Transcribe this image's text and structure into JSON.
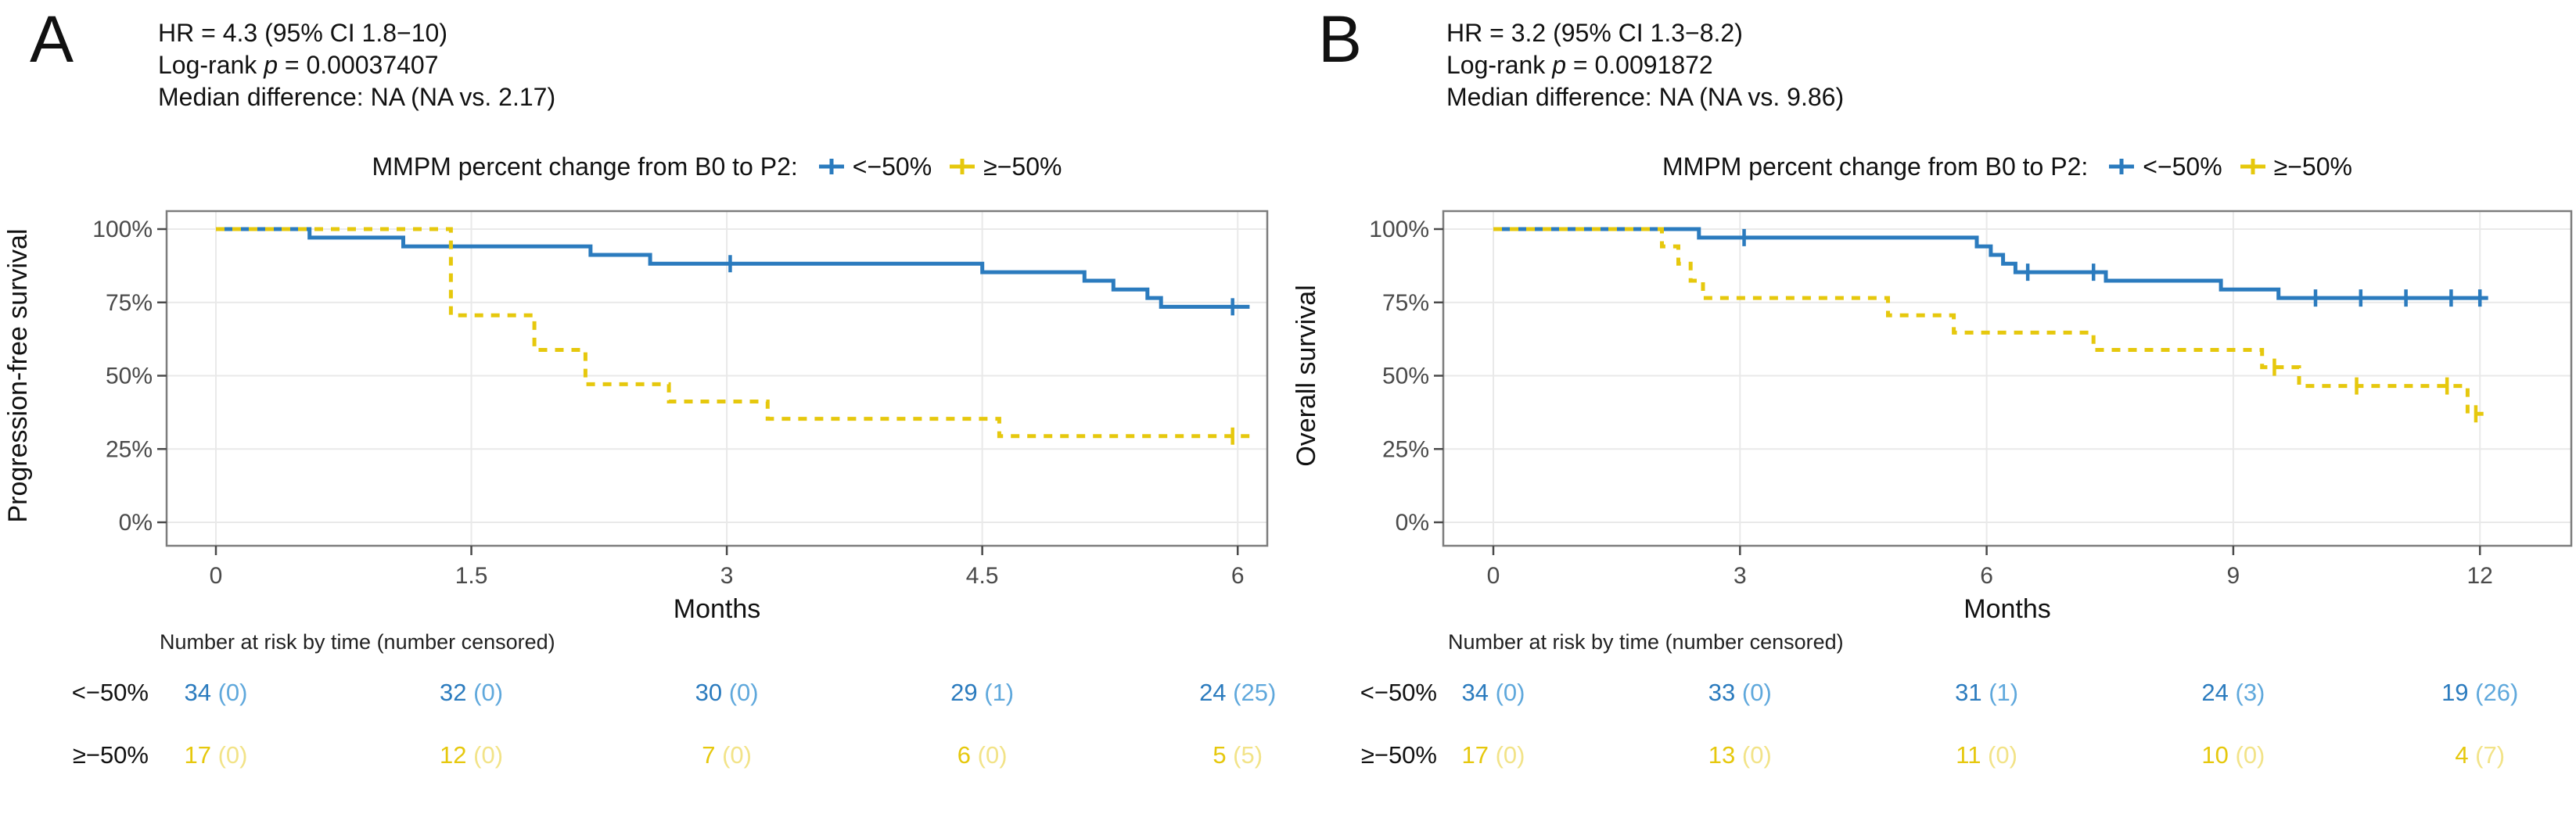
{
  "colors": {
    "blue": "#2B7BBE",
    "blue_light": "#5FA8DC",
    "yellow": "#E6C80D",
    "yellow_light": "#F2E388",
    "grid": "#E9E9E9",
    "plot_border": "#7D7D7D",
    "tick_label": "#4A4A4A",
    "text": "#111111"
  },
  "chart_data": [
    {
      "type": "line",
      "panel_label": "A",
      "stats": {
        "hr": "HR = 4.3 (95% CI 1.8−10)",
        "logrank_prefix": "Log-rank ",
        "logrank_pvar": "p",
        "logrank_rest": " = 0.00037407",
        "median": "Median difference: NA (NA vs. 2.17)"
      },
      "legend": {
        "title": "MMPM percent change from B0 to P2:",
        "entries": [
          "<−50%",
          "≥−50%"
        ]
      },
      "xlabel": "Months",
      "ylabel": "Progression-free survival",
      "xlim": [
        0,
        6.3
      ],
      "ylim": [
        0,
        1
      ],
      "grid": true,
      "legend_position": "top",
      "xticks": [
        {
          "value": 0,
          "label": "0"
        },
        {
          "value": 1.5,
          "label": "1.5"
        },
        {
          "value": 3,
          "label": "3"
        },
        {
          "value": 4.5,
          "label": "4.5"
        },
        {
          "value": 6,
          "label": "6"
        }
      ],
      "yticks": [
        {
          "value": 1.0,
          "label": "100%"
        },
        {
          "value": 0.75,
          "label": "75%"
        },
        {
          "value": 0.5,
          "label": "50%"
        },
        {
          "value": 0.25,
          "label": "25%"
        },
        {
          "value": 0.0,
          "label": "0%"
        }
      ],
      "series": [
        {
          "name": "<−50%",
          "color_key": "blue",
          "style": "solid",
          "steps": [
            [
              0,
              1.0
            ],
            [
              0.55,
              0.971
            ],
            [
              1.1,
              0.941
            ],
            [
              2.2,
              0.912
            ],
            [
              2.55,
              0.882
            ],
            [
              4.5,
              0.853
            ],
            [
              5.1,
              0.824
            ],
            [
              5.27,
              0.794
            ],
            [
              5.47,
              0.765
            ],
            [
              5.55,
              0.735
            ]
          ],
          "end": 6.07,
          "censors": [
            [
              3.02,
              0.882
            ],
            [
              5.97,
              0.735
            ]
          ]
        },
        {
          "name": "≥−50%",
          "color_key": "yellow",
          "style": "dashed",
          "steps": [
            [
              0,
              1.0
            ],
            [
              1.38,
              0.706
            ],
            [
              1.87,
              0.588
            ],
            [
              2.17,
              0.471
            ],
            [
              2.66,
              0.412
            ],
            [
              3.24,
              0.353
            ],
            [
              4.6,
              0.294
            ]
          ],
          "end": 6.07,
          "censors": [
            [
              5.97,
              0.294
            ]
          ]
        }
      ],
      "risk_table": {
        "header": "Number at risk by time (number censored)",
        "rows": [
          {
            "label": "<−50%",
            "color_key": "blue",
            "values": [
              {
                "n": "34",
                "c": "(0)"
              },
              {
                "n": "32",
                "c": "(0)"
              },
              {
                "n": "30",
                "c": "(0)"
              },
              {
                "n": "29",
                "c": "(1)"
              },
              {
                "n": "24",
                "c": "(25)"
              }
            ]
          },
          {
            "label": "≥−50%",
            "color_key": "yellow",
            "values": [
              {
                "n": "17",
                "c": "(0)"
              },
              {
                "n": "12",
                "c": "(0)"
              },
              {
                "n": "7",
                "c": "(0)"
              },
              {
                "n": "6",
                "c": "(0)"
              },
              {
                "n": "5",
                "c": "(5)"
              }
            ]
          }
        ]
      }
    },
    {
      "type": "line",
      "panel_label": "B",
      "stats": {
        "hr": "HR = 3.2 (95% CI 1.3−8.2)",
        "logrank_prefix": "Log-rank ",
        "logrank_pvar": "p",
        "logrank_rest": " = 0.0091872",
        "median": "Median difference: NA (NA vs. 9.86)"
      },
      "legend": {
        "title": "MMPM percent change from B0 to P2:",
        "entries": [
          "<−50%",
          "≥−50%"
        ]
      },
      "xlabel": "Months",
      "ylabel": "Overall survival",
      "xlim": [
        0,
        12.6
      ],
      "ylim": [
        0,
        1
      ],
      "grid": true,
      "legend_position": "top",
      "xticks": [
        {
          "value": 0,
          "label": "0"
        },
        {
          "value": 3,
          "label": "3"
        },
        {
          "value": 6,
          "label": "6"
        },
        {
          "value": 9,
          "label": "9"
        },
        {
          "value": 12,
          "label": "12"
        }
      ],
      "yticks": [
        {
          "value": 1.0,
          "label": "100%"
        },
        {
          "value": 0.75,
          "label": "75%"
        },
        {
          "value": 0.5,
          "label": "50%"
        },
        {
          "value": 0.25,
          "label": "25%"
        },
        {
          "value": 0.0,
          "label": "0%"
        }
      ],
      "series": [
        {
          "name": "<−50%",
          "color_key": "blue",
          "style": "solid",
          "steps": [
            [
              0,
              1.0
            ],
            [
              2.5,
              0.971
            ],
            [
              5.88,
              0.941
            ],
            [
              6.05,
              0.912
            ],
            [
              6.2,
              0.882
            ],
            [
              6.35,
              0.853
            ],
            [
              7.45,
              0.824
            ],
            [
              8.85,
              0.794
            ],
            [
              9.55,
              0.765
            ]
          ],
          "end": 12.1,
          "censors": [
            [
              3.05,
              0.971
            ],
            [
              6.5,
              0.853
            ],
            [
              7.3,
              0.853
            ],
            [
              10.0,
              0.765
            ],
            [
              10.55,
              0.765
            ],
            [
              11.1,
              0.765
            ],
            [
              11.65,
              0.765
            ],
            [
              12.0,
              0.765
            ]
          ]
        },
        {
          "name": "≥−50%",
          "color_key": "yellow",
          "style": "dashed",
          "steps": [
            [
              0,
              1.0
            ],
            [
              2.05,
              0.941
            ],
            [
              2.25,
              0.882
            ],
            [
              2.4,
              0.824
            ],
            [
              2.55,
              0.765
            ],
            [
              4.8,
              0.706
            ],
            [
              5.6,
              0.647
            ],
            [
              7.3,
              0.588
            ],
            [
              9.35,
              0.529
            ],
            [
              9.8,
              0.465
            ],
            [
              11.85,
              0.37
            ]
          ],
          "end": 12.1,
          "censors": [
            [
              9.5,
              0.529
            ],
            [
              10.5,
              0.465
            ],
            [
              11.6,
              0.465
            ],
            [
              11.95,
              0.37
            ]
          ]
        }
      ],
      "risk_table": {
        "header": "Number at risk by time (number censored)",
        "rows": [
          {
            "label": "<−50%",
            "color_key": "blue",
            "values": [
              {
                "n": "34",
                "c": "(0)"
              },
              {
                "n": "33",
                "c": "(0)"
              },
              {
                "n": "31",
                "c": "(1)"
              },
              {
                "n": "24",
                "c": "(3)"
              },
              {
                "n": "19",
                "c": "(26)"
              }
            ]
          },
          {
            "label": "≥−50%",
            "color_key": "yellow",
            "values": [
              {
                "n": "17",
                "c": "(0)"
              },
              {
                "n": "13",
                "c": "(0)"
              },
              {
                "n": "11",
                "c": "(0)"
              },
              {
                "n": "10",
                "c": "(0)"
              },
              {
                "n": "4",
                "c": "(7)"
              }
            ]
          }
        ]
      }
    }
  ]
}
